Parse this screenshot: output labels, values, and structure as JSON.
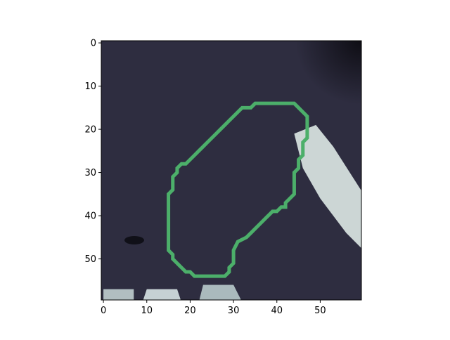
{
  "chart_data": {
    "type": "heatmap",
    "description_visible": "grayscale CT image patch with green segmentation contour",
    "grid_size": [
      60,
      60
    ],
    "x_ticks": [
      0,
      10,
      20,
      30,
      40,
      50
    ],
    "y_ticks": [
      0,
      10,
      20,
      30,
      40,
      50
    ],
    "x_tick_labels": [
      "0",
      "10",
      "20",
      "30",
      "40",
      "50"
    ],
    "y_tick_labels": [
      "0",
      "10",
      "20",
      "30",
      "40",
      "50"
    ],
    "contour_color": "#4caf6a",
    "contour_points": [
      [
        36,
        14
      ],
      [
        44,
        14
      ],
      [
        45,
        15
      ],
      [
        46,
        16
      ],
      [
        47,
        17
      ],
      [
        47,
        22
      ],
      [
        46,
        23
      ],
      [
        46,
        26
      ],
      [
        45,
        27
      ],
      [
        45,
        29
      ],
      [
        44,
        30
      ],
      [
        44,
        35
      ],
      [
        43,
        36
      ],
      [
        42,
        37
      ],
      [
        42,
        38
      ],
      [
        41,
        38
      ],
      [
        40,
        39
      ],
      [
        39,
        39
      ],
      [
        38,
        40
      ],
      [
        36,
        42
      ],
      [
        34,
        44
      ],
      [
        33,
        45
      ],
      [
        31,
        46
      ],
      [
        30,
        48
      ],
      [
        30,
        51
      ],
      [
        29,
        52
      ],
      [
        29,
        53
      ],
      [
        28,
        54
      ],
      [
        21,
        54
      ],
      [
        20,
        53
      ],
      [
        19,
        53
      ],
      [
        18,
        52
      ],
      [
        17,
        51
      ],
      [
        16,
        50
      ],
      [
        16,
        49
      ],
      [
        15,
        48
      ],
      [
        15,
        35
      ],
      [
        16,
        34
      ],
      [
        16,
        31
      ],
      [
        17,
        30
      ],
      [
        17,
        29
      ],
      [
        18,
        28
      ],
      [
        19,
        28
      ],
      [
        20,
        27
      ],
      [
        21,
        26
      ],
      [
        22,
        25
      ],
      [
        23,
        24
      ],
      [
        24,
        23
      ],
      [
        25,
        22
      ],
      [
        26,
        21
      ],
      [
        27,
        20
      ],
      [
        28,
        19
      ],
      [
        29,
        18
      ],
      [
        30,
        17
      ],
      [
        31,
        16
      ],
      [
        32,
        15
      ],
      [
        34,
        15
      ],
      [
        35,
        14
      ]
    ],
    "bright_regions": [
      {
        "name": "bone-right",
        "points": [
          [
            44,
            21
          ],
          [
            49,
            19
          ],
          [
            53,
            24
          ],
          [
            60,
            35
          ],
          [
            60,
            48
          ],
          [
            56,
            44
          ],
          [
            50,
            36
          ],
          [
            46,
            29
          ]
        ],
        "color": "#e8f4f0"
      },
      {
        "name": "bone-bottom-1",
        "points": [
          [
            0,
            57
          ],
          [
            7,
            57
          ],
          [
            7,
            60
          ],
          [
            0,
            60
          ]
        ],
        "color": "#c8d8d8"
      },
      {
        "name": "bone-bottom-2",
        "points": [
          [
            10,
            57
          ],
          [
            17,
            57
          ],
          [
            18,
            60
          ],
          [
            9,
            60
          ]
        ],
        "color": "#e0eeee"
      },
      {
        "name": "bone-bottom-3",
        "points": [
          [
            23,
            56
          ],
          [
            30,
            56
          ],
          [
            32,
            60
          ],
          [
            22,
            60
          ]
        ],
        "color": "#c0d4d4"
      }
    ],
    "background_color": "#2e2d40",
    "dark_region_color": "#171620",
    "colormap": "bone"
  }
}
